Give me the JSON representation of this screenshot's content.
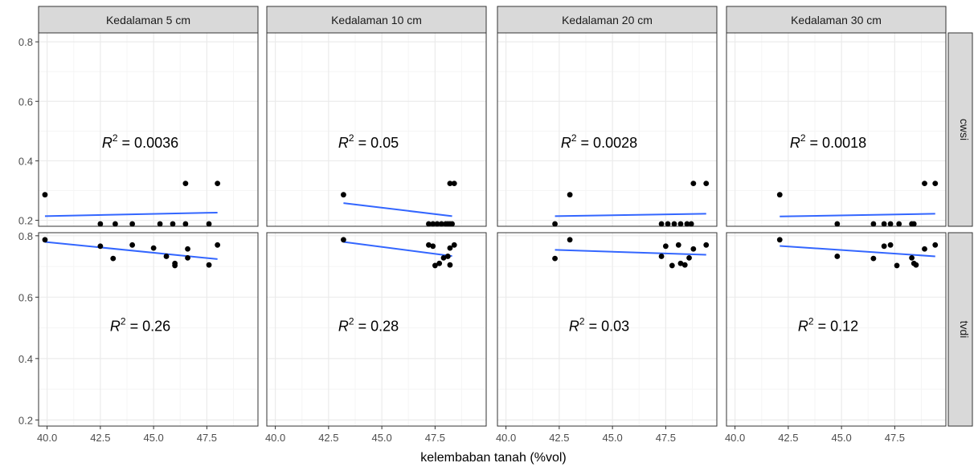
{
  "chart_data": {
    "type": "scatter",
    "xlabel": "kelembaban tanah (%vol)",
    "ylabel": "",
    "xlim": [
      39.6,
      49.9
    ],
    "x_ticks": [
      "40.0",
      "42.5",
      "45.0",
      "47.5"
    ],
    "x_tick_values": [
      40.0,
      42.5,
      45.0,
      47.5
    ],
    "grid": true,
    "legend": "none",
    "colors": {
      "points": "#000000",
      "fit_line": "#3366FF",
      "strip_bg": "#D9D9D9",
      "grid_major": "#EBEBEB",
      "grid_minor": "#F5F5F5"
    },
    "columns": [
      "Kedalaman 5 cm",
      "Kedalaman 10 cm",
      "Kedalaman 20 cm",
      "Kedalaman 30 cm"
    ],
    "rows": [
      {
        "label": "cwsi",
        "ylim": [
          0.18,
          0.83
        ],
        "y_ticks": [
          "0.2",
          "0.4",
          "0.6",
          "0.8"
        ],
        "y_tick_values": [
          0.2,
          0.4,
          0.6,
          0.8
        ],
        "label_y": 0.46
      },
      {
        "label": "tvdi",
        "ylim": [
          0.18,
          0.81
        ],
        "y_ticks": [
          "0.2",
          "0.4",
          "0.6",
          "0.8"
        ],
        "y_tick_values": [
          0.2,
          0.4,
          0.6,
          0.8
        ],
        "label_y": 0.505
      }
    ],
    "r2_prefix": "R",
    "r2_suffix": "2",
    "panels": [
      {
        "row": 0,
        "col": 0,
        "r2": " = 0.0036",
        "points": [
          [
            39.9,
            0.286
          ],
          [
            42.5,
            0.188
          ],
          [
            43.2,
            0.188
          ],
          [
            44.0,
            0.188
          ],
          [
            45.3,
            0.188
          ],
          [
            45.9,
            0.188
          ],
          [
            46.5,
            0.188
          ],
          [
            46.5,
            0.324
          ],
          [
            47.6,
            0.188
          ],
          [
            48.0,
            0.324
          ]
        ],
        "fit": [
          [
            39.9,
            0.214
          ],
          [
            48.0,
            0.226
          ]
        ]
      },
      {
        "row": 0,
        "col": 1,
        "r2": " = 0.05",
        "points": [
          [
            43.2,
            0.286
          ],
          [
            47.2,
            0.188
          ],
          [
            47.4,
            0.188
          ],
          [
            47.6,
            0.188
          ],
          [
            47.8,
            0.188
          ],
          [
            48.0,
            0.188
          ],
          [
            48.1,
            0.188
          ],
          [
            48.2,
            0.188
          ],
          [
            48.3,
            0.188
          ],
          [
            48.2,
            0.324
          ],
          [
            48.4,
            0.324
          ]
        ],
        "fit": [
          [
            43.2,
            0.258
          ],
          [
            48.3,
            0.214
          ]
        ]
      },
      {
        "row": 0,
        "col": 2,
        "r2": " = 0.0028",
        "points": [
          [
            42.3,
            0.188
          ],
          [
            43.0,
            0.286
          ],
          [
            47.3,
            0.188
          ],
          [
            47.6,
            0.188
          ],
          [
            47.9,
            0.188
          ],
          [
            48.2,
            0.188
          ],
          [
            48.5,
            0.188
          ],
          [
            48.7,
            0.188
          ],
          [
            48.8,
            0.324
          ],
          [
            49.4,
            0.324
          ]
        ],
        "fit": [
          [
            42.3,
            0.214
          ],
          [
            49.4,
            0.222
          ]
        ]
      },
      {
        "row": 0,
        "col": 3,
        "r2": " = 0.0018",
        "points": [
          [
            42.1,
            0.286
          ],
          [
            44.8,
            0.188
          ],
          [
            46.5,
            0.188
          ],
          [
            47.0,
            0.188
          ],
          [
            47.3,
            0.188
          ],
          [
            47.7,
            0.188
          ],
          [
            48.3,
            0.188
          ],
          [
            48.4,
            0.188
          ],
          [
            48.9,
            0.324
          ],
          [
            49.4,
            0.324
          ]
        ],
        "fit": [
          [
            42.1,
            0.213
          ],
          [
            49.4,
            0.222
          ]
        ]
      },
      {
        "row": 1,
        "col": 0,
        "r2": " = 0.26",
        "points": [
          [
            39.9,
            0.787
          ],
          [
            42.5,
            0.766
          ],
          [
            43.1,
            0.726
          ],
          [
            44.0,
            0.77
          ],
          [
            45.0,
            0.76
          ],
          [
            45.6,
            0.733
          ],
          [
            46.0,
            0.71
          ],
          [
            46.0,
            0.703
          ],
          [
            46.6,
            0.757
          ],
          [
            46.6,
            0.728
          ],
          [
            47.6,
            0.705
          ],
          [
            48.0,
            0.77
          ]
        ],
        "fit": [
          [
            39.9,
            0.78
          ],
          [
            48.0,
            0.724
          ]
        ]
      },
      {
        "row": 1,
        "col": 1,
        "r2": " = 0.28",
        "points": [
          [
            43.2,
            0.787
          ],
          [
            47.2,
            0.77
          ],
          [
            47.4,
            0.766
          ],
          [
            47.5,
            0.703
          ],
          [
            47.7,
            0.71
          ],
          [
            47.9,
            0.728
          ],
          [
            48.1,
            0.733
          ],
          [
            48.2,
            0.76
          ],
          [
            48.2,
            0.705
          ],
          [
            48.4,
            0.77
          ]
        ],
        "fit": [
          [
            43.2,
            0.78
          ],
          [
            48.3,
            0.734
          ]
        ]
      },
      {
        "row": 1,
        "col": 2,
        "r2": " = 0.03",
        "points": [
          [
            42.3,
            0.726
          ],
          [
            43.0,
            0.787
          ],
          [
            47.3,
            0.733
          ],
          [
            47.5,
            0.766
          ],
          [
            47.8,
            0.703
          ],
          [
            48.1,
            0.77
          ],
          [
            48.2,
            0.71
          ],
          [
            48.4,
            0.705
          ],
          [
            48.6,
            0.728
          ],
          [
            48.8,
            0.757
          ],
          [
            49.4,
            0.77
          ]
        ],
        "fit": [
          [
            42.3,
            0.754
          ],
          [
            49.4,
            0.738
          ]
        ]
      },
      {
        "row": 1,
        "col": 3,
        "r2": " = 0.12",
        "points": [
          [
            42.1,
            0.787
          ],
          [
            44.8,
            0.733
          ],
          [
            46.5,
            0.726
          ],
          [
            47.0,
            0.766
          ],
          [
            47.3,
            0.77
          ],
          [
            47.6,
            0.703
          ],
          [
            48.3,
            0.728
          ],
          [
            48.4,
            0.71
          ],
          [
            48.5,
            0.705
          ],
          [
            48.9,
            0.757
          ],
          [
            49.4,
            0.77
          ]
        ],
        "fit": [
          [
            42.1,
            0.767
          ],
          [
            49.4,
            0.733
          ]
        ]
      }
    ]
  }
}
